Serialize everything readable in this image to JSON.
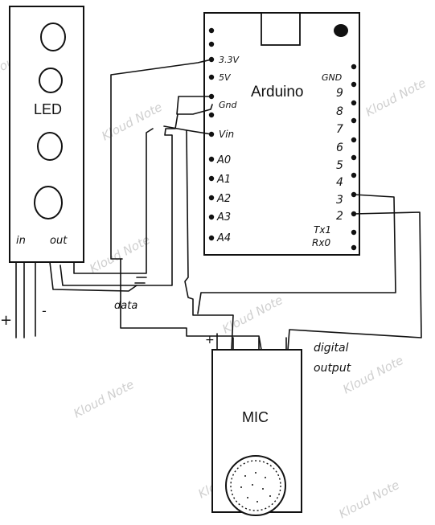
{
  "watermark": "Kloud Note",
  "led": {
    "title": "LED",
    "pins": [
      "in",
      "out"
    ],
    "supply_marks": [
      "+",
      "-"
    ]
  },
  "arduino": {
    "title": "Arduino",
    "left_pins": [
      "3.3V",
      "5V",
      "Gnd",
      "Vin",
      "A0",
      "A1",
      "A2",
      "A3",
      "A4"
    ],
    "right_pins": [
      "GND",
      "9",
      "8",
      "7",
      "6",
      "5",
      "4",
      "3",
      "2",
      "Tx1",
      "Rx0"
    ]
  },
  "mic": {
    "title": "MIC",
    "plus_mark": "+",
    "note": [
      "digital",
      "output"
    ]
  },
  "wire_labels": {
    "data": "data"
  },
  "colors": {
    "ink": "#111111",
    "watermark": "#cfcfcf"
  }
}
